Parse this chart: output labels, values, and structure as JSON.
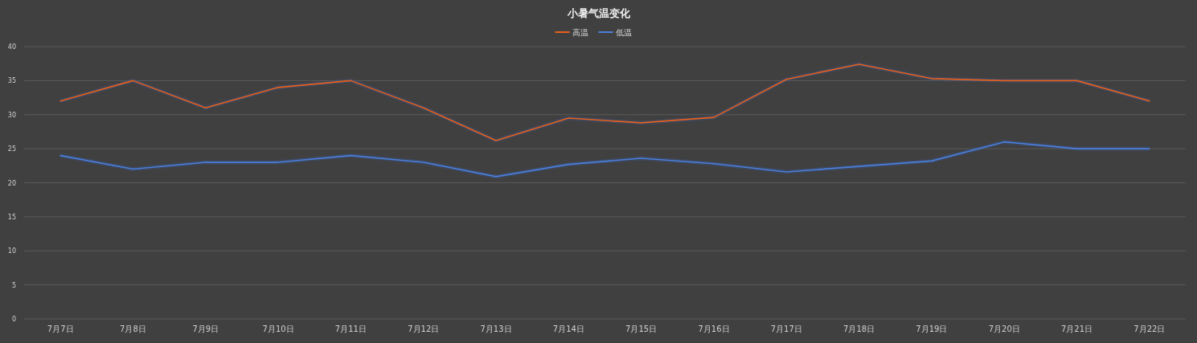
{
  "chart_data": {
    "type": "line",
    "title": "小暑气温变化",
    "categories": [
      "7月7日",
      "7月8日",
      "7月9日",
      "7月10日",
      "7月11日",
      "7月12日",
      "7月13日",
      "7月14日",
      "7月15日",
      "7月16日",
      "7月17日",
      "7月18日",
      "7月19日",
      "7月20日",
      "7月21日",
      "7月22日"
    ],
    "series": [
      {
        "name": "高温",
        "color": "#e8601c",
        "values": [
          32,
          35,
          31,
          34,
          35,
          31,
          26.2,
          29.5,
          28.8,
          29.6,
          35.2,
          37.4,
          35.3,
          35,
          35,
          32
        ]
      },
      {
        "name": "低温",
        "color": "#4a7fdc",
        "values": [
          24,
          22,
          23,
          23,
          24,
          23,
          20.9,
          22.7,
          23.6,
          22.8,
          21.6,
          22.4,
          23.2,
          26,
          25,
          25
        ]
      }
    ],
    "ylim": [
      0,
      40
    ],
    "yticks": [
      0,
      5,
      10,
      15,
      20,
      25,
      30,
      35,
      40
    ],
    "grid": "y",
    "legend": "top",
    "marker": "none",
    "line_style": "solid"
  }
}
